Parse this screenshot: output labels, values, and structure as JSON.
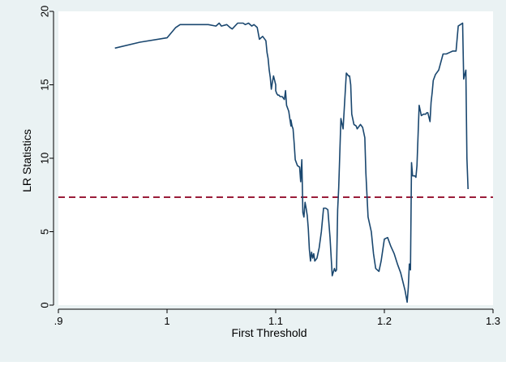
{
  "chart_data": {
    "type": "line",
    "title": "",
    "xlabel": "First Threshold",
    "ylabel": "LR Statistics",
    "xlim": [
      0.9,
      1.3
    ],
    "ylim": [
      0,
      20
    ],
    "x_ticks": [
      0.9,
      1.0,
      1.1,
      1.2,
      1.3
    ],
    "x_tick_labels": [
      ".9",
      "1",
      "1.1",
      "1.2",
      "1.3"
    ],
    "y_ticks": [
      0,
      5,
      10,
      15,
      20
    ],
    "y_tick_labels": [
      "0",
      "5",
      "10",
      "15",
      "20"
    ],
    "grid": false,
    "legend": "none",
    "background_color": "#eaf2f3",
    "plot_background_color": "#ffffff",
    "line_color": "#1a476f",
    "reference_line": {
      "y": 7.35,
      "style": "dashed",
      "color": "#9b1d3a"
    },
    "series": [
      {
        "x": [
          0.952,
          0.975,
          1.0,
          1.008,
          1.012,
          1.015,
          1.03,
          1.035,
          1.038,
          1.045,
          1.048,
          1.05,
          1.055,
          1.058,
          1.06,
          1.065,
          1.07,
          1.072,
          1.075,
          1.078,
          1.08,
          1.083,
          1.085,
          1.088,
          1.091,
          1.092,
          1.093,
          1.094,
          1.095,
          1.096,
          1.097,
          1.098,
          1.1,
          1.1,
          1.101,
          1.102,
          1.103,
          1.104,
          1.106,
          1.108,
          1.109,
          1.11,
          1.112,
          1.113,
          1.114,
          1.114,
          1.115,
          1.116,
          1.117,
          1.118,
          1.12,
          1.122,
          1.123,
          1.124,
          1.125,
          1.126,
          1.127,
          1.128,
          1.129,
          1.13,
          1.131,
          1.132,
          1.133,
          1.134,
          1.135,
          1.136,
          1.138,
          1.14,
          1.142,
          1.144,
          1.146,
          1.148,
          1.15,
          1.152,
          1.154,
          1.155,
          1.156,
          1.157,
          1.158,
          1.16,
          1.162,
          1.165,
          1.167,
          1.168,
          1.169,
          1.17,
          1.172,
          1.174,
          1.175,
          1.178,
          1.18,
          1.182,
          1.183,
          1.185,
          1.188,
          1.19,
          1.192,
          1.195,
          1.197,
          1.2,
          1.203,
          1.206,
          1.209,
          1.212,
          1.215,
          1.217,
          1.219,
          1.221,
          1.222,
          1.223,
          1.224,
          1.225,
          1.226,
          1.228,
          1.229,
          1.23,
          1.232,
          1.234,
          1.236,
          1.238,
          1.239,
          1.24,
          1.242,
          1.243,
          1.244,
          1.245,
          1.247,
          1.25,
          1.254,
          1.257,
          1.26,
          1.263,
          1.266,
          1.268,
          1.27,
          1.272,
          1.273,
          1.275,
          1.276,
          1.277
        ],
        "y": [
          17.5,
          17.9,
          18.2,
          18.9,
          19.1,
          19.1,
          19.1,
          19.1,
          19.1,
          19.0,
          19.2,
          19.0,
          19.1,
          18.9,
          18.8,
          19.2,
          19.2,
          19.1,
          19.2,
          19.0,
          19.1,
          18.9,
          18.1,
          18.3,
          18.0,
          17.2,
          16.8,
          16.0,
          15.5,
          14.7,
          15.2,
          15.6,
          15.0,
          14.6,
          14.4,
          14.3,
          14.3,
          14.2,
          14.2,
          14.0,
          14.6,
          13.6,
          13.2,
          12.7,
          12.2,
          12.6,
          12.2,
          12.0,
          11.0,
          9.9,
          9.5,
          9.4,
          8.4,
          9.9,
          6.3,
          6.0,
          7.0,
          6.6,
          6.1,
          5.2,
          3.8,
          3.0,
          3.6,
          3.2,
          3.5,
          3.0,
          3.2,
          3.9,
          5.0,
          6.6,
          6.6,
          6.5,
          4.6,
          2.0,
          2.5,
          2.3,
          2.4,
          6.5,
          8.0,
          12.7,
          12.0,
          15.8,
          15.6,
          15.6,
          15.0,
          13.0,
          12.3,
          12.2,
          12.0,
          12.3,
          12.1,
          11.4,
          9.0,
          6.0,
          5.0,
          3.5,
          2.5,
          2.3,
          3.0,
          4.5,
          4.6,
          4.0,
          3.5,
          2.8,
          2.2,
          1.6,
          1.0,
          0.2,
          1.2,
          2.8,
          2.4,
          9.7,
          8.8,
          8.8,
          8.7,
          9.5,
          13.6,
          12.9,
          13.0,
          13.0,
          13.1,
          13.1,
          12.5,
          13.8,
          14.5,
          15.3,
          15.7,
          16.0,
          17.1,
          17.1,
          17.2,
          17.3,
          17.3,
          19.0,
          19.1,
          19.2,
          15.4,
          16.0,
          10.0,
          7.9
        ]
      }
    ]
  }
}
